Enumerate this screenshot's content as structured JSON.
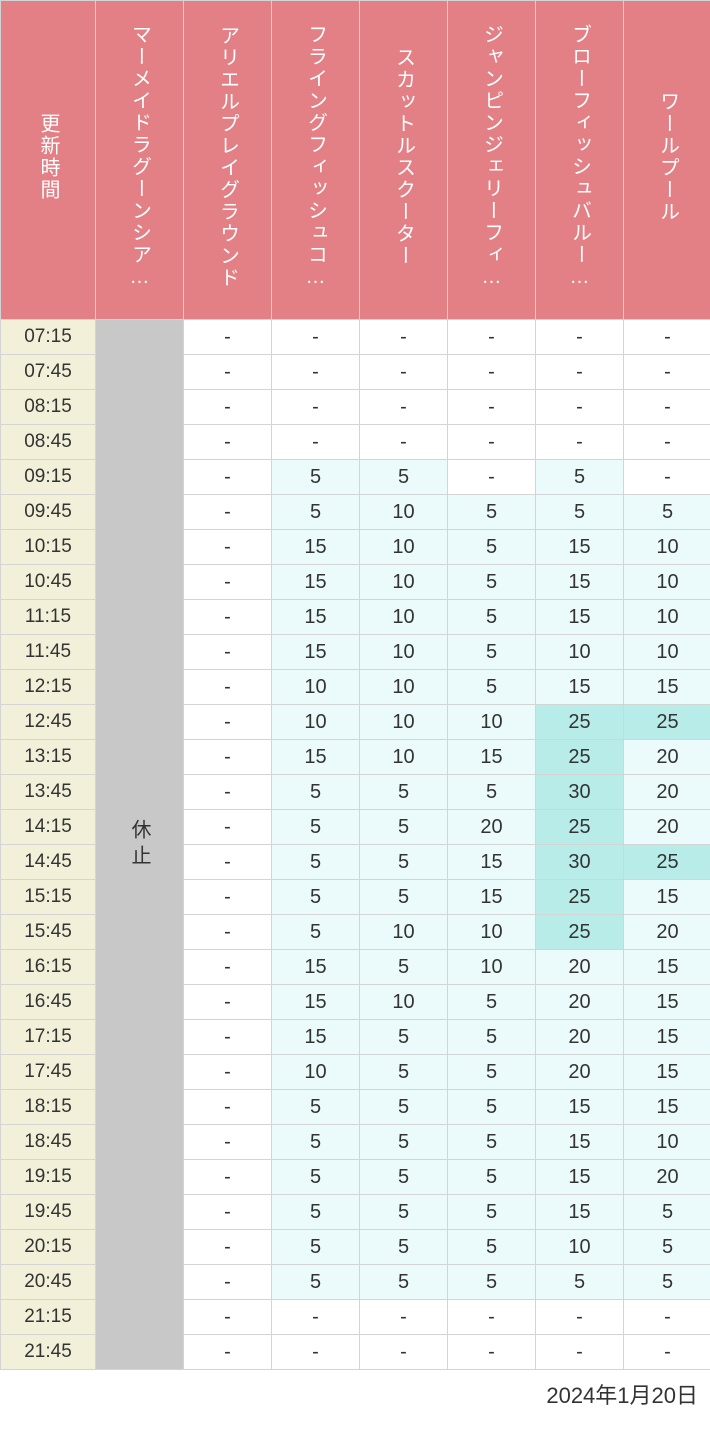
{
  "footer_date": "2024年1月20日",
  "colors": {
    "header_bg": "#e38085",
    "header_text": "#ffffff",
    "time_bg": "#f2f0d8",
    "closed_bg": "#c8c8c8",
    "empty_bg": "#ffffff",
    "tier1_bg": "#ebfbfb",
    "tier2_bg": "#b8ece8",
    "border": "#d4d4d4",
    "text": "#333333"
  },
  "tier2_threshold": 25,
  "headers": {
    "time": "更新時間",
    "rides": [
      "マーメイドラグーンシア…",
      "アリエルプレイグラウンド",
      "フライングフィッシュコ…",
      "スカットルスクーター",
      "ジャンピンジェリーフィ…",
      "ブローフィッシュバルー…",
      "ワールプール"
    ]
  },
  "closed_label": "休止",
  "times": [
    "07:15",
    "07:45",
    "08:15",
    "08:45",
    "09:15",
    "09:45",
    "10:15",
    "10:45",
    "11:15",
    "11:45",
    "12:15",
    "12:45",
    "13:15",
    "13:45",
    "14:15",
    "14:45",
    "15:15",
    "15:45",
    "16:15",
    "16:45",
    "17:15",
    "17:45",
    "18:15",
    "18:45",
    "19:15",
    "19:45",
    "20:15",
    "20:45",
    "21:15",
    "21:45"
  ],
  "columns": [
    {
      "type": "closed"
    },
    {
      "type": "data",
      "values": [
        "-",
        "-",
        "-",
        "-",
        "-",
        "-",
        "-",
        "-",
        "-",
        "-",
        "-",
        "-",
        "-",
        "-",
        "-",
        "-",
        "-",
        "-",
        "-",
        "-",
        "-",
        "-",
        "-",
        "-",
        "-",
        "-",
        "-",
        "-",
        "-",
        "-"
      ]
    },
    {
      "type": "data",
      "values": [
        "-",
        "-",
        "-",
        "-",
        "5",
        "5",
        "15",
        "15",
        "15",
        "15",
        "10",
        "10",
        "15",
        "5",
        "5",
        "5",
        "5",
        "5",
        "15",
        "15",
        "15",
        "10",
        "5",
        "5",
        "5",
        "5",
        "5",
        "5",
        "-",
        "-"
      ]
    },
    {
      "type": "data",
      "values": [
        "-",
        "-",
        "-",
        "-",
        "5",
        "10",
        "10",
        "10",
        "10",
        "10",
        "10",
        "10",
        "10",
        "5",
        "5",
        "5",
        "5",
        "10",
        "5",
        "10",
        "5",
        "5",
        "5",
        "5",
        "5",
        "5",
        "5",
        "5",
        "-",
        "-"
      ]
    },
    {
      "type": "data",
      "values": [
        "-",
        "-",
        "-",
        "-",
        "-",
        "5",
        "5",
        "5",
        "5",
        "5",
        "5",
        "10",
        "15",
        "5",
        "20",
        "15",
        "15",
        "10",
        "10",
        "5",
        "5",
        "5",
        "5",
        "5",
        "5",
        "5",
        "5",
        "5",
        "-",
        "-"
      ]
    },
    {
      "type": "data",
      "values": [
        "-",
        "-",
        "-",
        "-",
        "5",
        "5",
        "15",
        "15",
        "15",
        "10",
        "15",
        "25",
        "25",
        "30",
        "25",
        "30",
        "25",
        "25",
        "20",
        "20",
        "20",
        "20",
        "15",
        "15",
        "15",
        "15",
        "10",
        "5",
        "-",
        "-"
      ]
    },
    {
      "type": "data",
      "values": [
        "-",
        "-",
        "-",
        "-",
        "-",
        "5",
        "10",
        "10",
        "10",
        "10",
        "15",
        "25",
        "20",
        "20",
        "20",
        "25",
        "15",
        "20",
        "15",
        "15",
        "15",
        "15",
        "15",
        "10",
        "20",
        "5",
        "5",
        "5",
        "-",
        "-"
      ]
    }
  ]
}
